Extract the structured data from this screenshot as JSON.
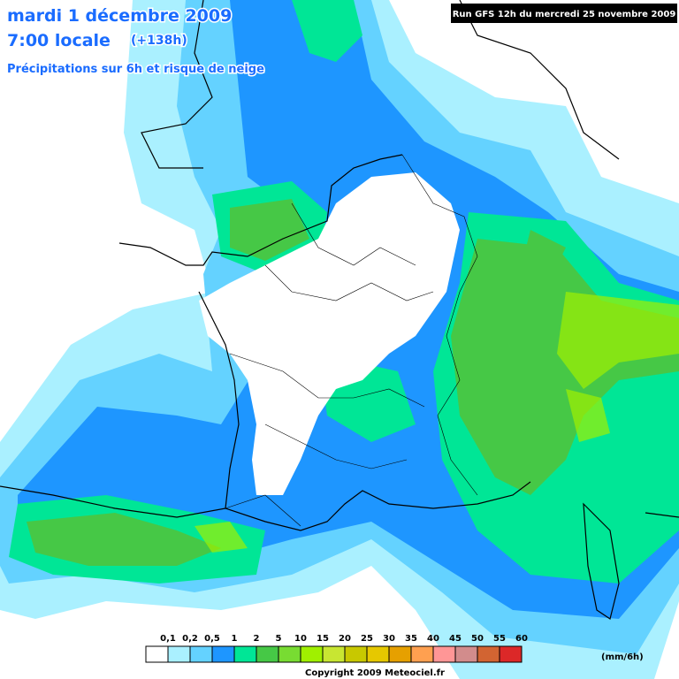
{
  "header": {
    "date": "mardi 1 décembre 2009",
    "time": "7:00 locale",
    "lead": "(+138h)",
    "subtitle": "Précipitations sur 6h et risque de neige",
    "run": "Run GFS 12h du mercredi 25 novembre 2009"
  },
  "legend": {
    "unit": "(mm/6h)",
    "labels": [
      "0,1",
      "0,2",
      "0,5",
      "1",
      "2",
      "5",
      "10",
      "15",
      "20",
      "25",
      "30",
      "35",
      "40",
      "45",
      "50",
      "55",
      "60"
    ],
    "colors": [
      "#ffffff",
      "#aaf0ff",
      "#64d2ff",
      "#1e96ff",
      "#00e696",
      "#46c846",
      "#78dc32",
      "#a0f000",
      "#c8e632",
      "#c8c800",
      "#e6c800",
      "#e6a000",
      "#ffa050",
      "#ff9696",
      "#d28c8c",
      "#d26432",
      "#dc2828"
    ]
  },
  "footer": {
    "copyright": "Copyright 2009 Meteociel.fr"
  }
}
